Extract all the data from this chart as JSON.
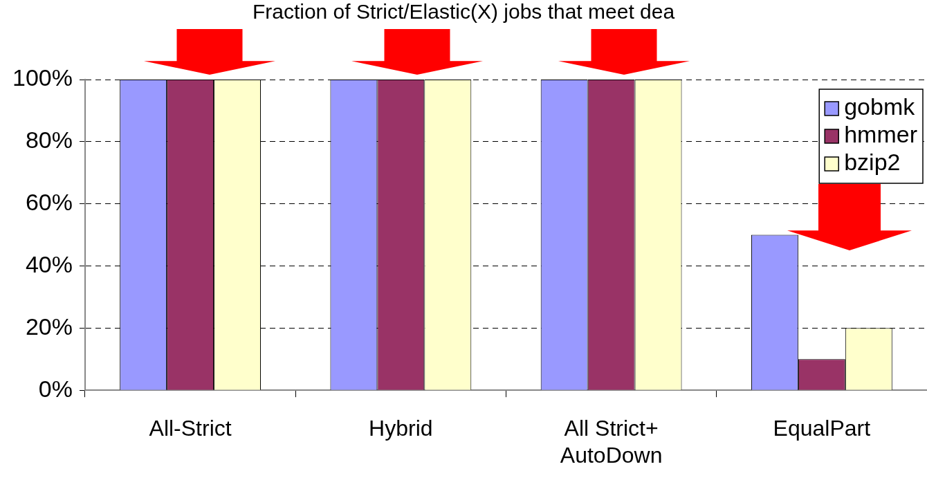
{
  "chart_data": {
    "type": "bar",
    "title": "Fraction of Strict/Elastic(X) jobs that meet dea",
    "categories": [
      "All-Strict",
      "Hybrid",
      "All Strict+ AutoDown",
      "EqualPart"
    ],
    "series": [
      {
        "name": "gobmk",
        "color": "#9999ff",
        "values": [
          100,
          100,
          100,
          50
        ]
      },
      {
        "name": "hmmer",
        "color": "#993366",
        "values": [
          100,
          100,
          100,
          10
        ]
      },
      {
        "name": "bzip2",
        "color": "#ffffcc",
        "values": [
          100,
          100,
          100,
          20
        ]
      }
    ],
    "ylim": [
      0,
      100
    ],
    "yticks": [
      {
        "value": 0,
        "label": "0%"
      },
      {
        "value": 20,
        "label": "20%"
      },
      {
        "value": 40,
        "label": "40%"
      },
      {
        "value": 60,
        "label": "60%"
      },
      {
        "value": 80,
        "label": "80%"
      },
      {
        "value": 100,
        "label": "100%"
      }
    ],
    "grid": "y",
    "legend": "top right"
  }
}
